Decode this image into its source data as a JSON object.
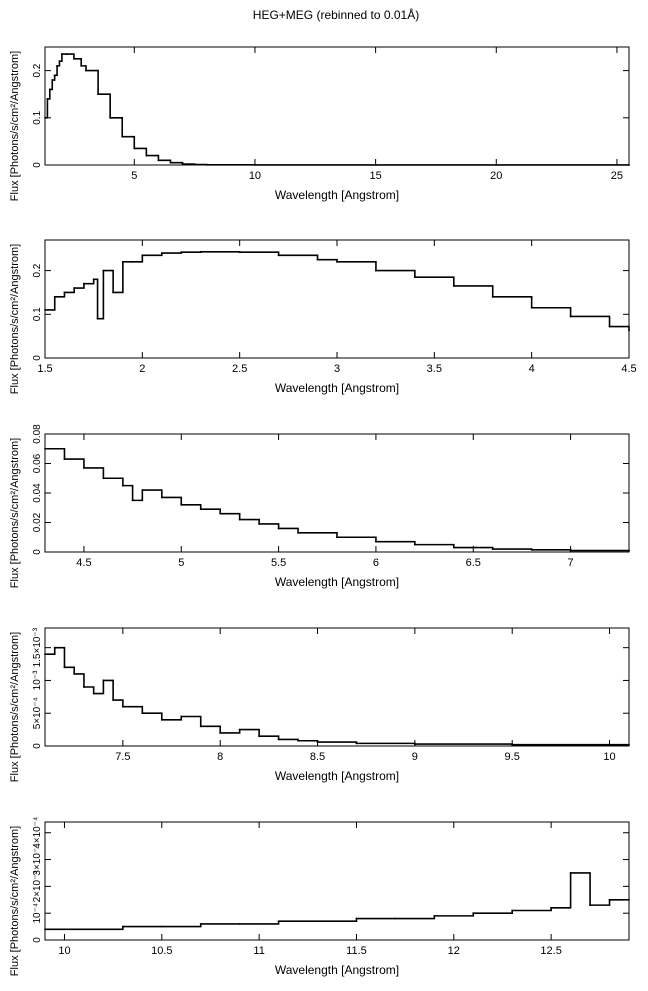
{
  "title": "HEG+MEG (rebinned to 0.01Å)",
  "chart_data": [
    {
      "type": "line",
      "xlabel": "Wavelength [Angstrom]",
      "ylabel": "Flux [Photons/s/cm²/Angstrom]",
      "xlim": [
        1.3,
        25.5
      ],
      "ylim": [
        0,
        0.25
      ],
      "xticks": [
        5,
        10,
        15,
        20,
        25
      ],
      "xtick_labels": [
        "5",
        "10",
        "15",
        "20",
        "25"
      ],
      "yticks": [
        0,
        0.1,
        0.2
      ],
      "ytick_labels": [
        "0",
        "0.1",
        "0.2"
      ],
      "series": [
        {
          "values_x": [
            1.3,
            1.4,
            1.5,
            1.6,
            1.7,
            1.8,
            1.9,
            2.0,
            2.2,
            2.5,
            2.8,
            3.0,
            3.5,
            4.0,
            4.5,
            5.0,
            5.5,
            6.0,
            6.5,
            7.0,
            7.5,
            8.0,
            10.0,
            15.0,
            20.0,
            25.5
          ],
          "values_y": [
            0.1,
            0.14,
            0.16,
            0.18,
            0.19,
            0.21,
            0.22,
            0.235,
            0.235,
            0.225,
            0.21,
            0.2,
            0.15,
            0.1,
            0.06,
            0.035,
            0.02,
            0.01,
            0.005,
            0.002,
            0.001,
            0.0005,
            0.0002,
            0.0001,
            0.0001,
            0.0001
          ]
        }
      ]
    },
    {
      "type": "line",
      "xlabel": "Wavelength [Angstrom]",
      "ylabel": "Flux [Photons/s/cm²/Angstrom]",
      "xlim": [
        1.5,
        4.5
      ],
      "ylim": [
        0,
        0.27
      ],
      "xticks": [
        1.5,
        2,
        2.5,
        3,
        3.5,
        4,
        4.5
      ],
      "xtick_labels": [
        "1.5",
        "2",
        "2.5",
        "3",
        "3.5",
        "4",
        "4.5"
      ],
      "yticks": [
        0,
        0.1,
        0.2
      ],
      "ytick_labels": [
        "0",
        "0.1",
        "0.2"
      ],
      "series": [
        {
          "values_x": [
            1.5,
            1.55,
            1.6,
            1.65,
            1.7,
            1.75,
            1.77,
            1.8,
            1.85,
            1.9,
            1.95,
            2.0,
            2.1,
            2.2,
            2.3,
            2.5,
            2.7,
            2.9,
            3.0,
            3.2,
            3.4,
            3.6,
            3.8,
            4.0,
            4.2,
            4.4,
            4.5
          ],
          "values_y": [
            0.11,
            0.14,
            0.15,
            0.16,
            0.17,
            0.18,
            0.09,
            0.2,
            0.15,
            0.22,
            0.22,
            0.235,
            0.24,
            0.242,
            0.243,
            0.242,
            0.235,
            0.225,
            0.22,
            0.2,
            0.185,
            0.165,
            0.14,
            0.115,
            0.095,
            0.072,
            0.063
          ]
        }
      ]
    },
    {
      "type": "line",
      "xlabel": "Wavelength [Angstrom]",
      "ylabel": "Flux [Photons/s/cm²/Angstrom]",
      "xlim": [
        4.3,
        7.3
      ],
      "ylim": [
        0,
        0.08
      ],
      "xticks": [
        4.5,
        5,
        5.5,
        6,
        6.5,
        7
      ],
      "xtick_labels": [
        "4.5",
        "5",
        "5.5",
        "6",
        "6.5",
        "7"
      ],
      "yticks": [
        0,
        0.02,
        0.04,
        0.06,
        0.08
      ],
      "ytick_labels": [
        "0",
        "0.02",
        "0.04",
        "0.06",
        "0.08"
      ],
      "series": [
        {
          "values_x": [
            4.3,
            4.4,
            4.5,
            4.6,
            4.7,
            4.75,
            4.8,
            4.9,
            5.0,
            5.1,
            5.2,
            5.3,
            5.4,
            5.5,
            5.6,
            5.8,
            6.0,
            6.2,
            6.4,
            6.6,
            6.8,
            7.0,
            7.3
          ],
          "values_y": [
            0.07,
            0.063,
            0.057,
            0.05,
            0.045,
            0.035,
            0.042,
            0.037,
            0.032,
            0.029,
            0.026,
            0.022,
            0.019,
            0.016,
            0.013,
            0.01,
            0.007,
            0.005,
            0.003,
            0.002,
            0.0015,
            0.001,
            0.0008
          ]
        }
      ]
    },
    {
      "type": "line",
      "xlabel": "Wavelength [Angstrom]",
      "ylabel": "Flux [Photons/s/cm²/Angstrom]",
      "xlim": [
        7.1,
        10.1
      ],
      "ylim": [
        0,
        0.0018
      ],
      "xticks": [
        7.5,
        8,
        8.5,
        9,
        9.5,
        10
      ],
      "xtick_labels": [
        "7.5",
        "8",
        "8.5",
        "9",
        "9.5",
        "10"
      ],
      "yticks": [
        0,
        0.0005,
        0.001,
        0.0015
      ],
      "ytick_labels": [
        "0",
        "5×10⁻⁴",
        "10⁻³",
        "1.5×10⁻³"
      ],
      "series": [
        {
          "values_x": [
            7.1,
            7.15,
            7.2,
            7.25,
            7.3,
            7.35,
            7.4,
            7.45,
            7.5,
            7.6,
            7.7,
            7.8,
            7.9,
            8.0,
            8.1,
            8.2,
            8.3,
            8.4,
            8.5,
            8.7,
            9.0,
            9.5,
            10.1
          ],
          "values_y": [
            0.0014,
            0.0015,
            0.0012,
            0.0011,
            0.0009,
            0.0008,
            0.001,
            0.0007,
            0.0006,
            0.0005,
            0.0004,
            0.00045,
            0.0003,
            0.0002,
            0.00025,
            0.00015,
            0.0001,
            8e-05,
            6e-05,
            4e-05,
            3e-05,
            2e-05,
            2e-05
          ]
        }
      ]
    },
    {
      "type": "line",
      "xlabel": "Wavelength [Angstrom]",
      "ylabel": "Flux [Photons/s/cm²/Angstrom]",
      "xlim": [
        9.9,
        12.9
      ],
      "ylim": [
        0,
        0.00044
      ],
      "xticks": [
        10,
        10.5,
        11,
        11.5,
        12,
        12.5
      ],
      "xtick_labels": [
        "10",
        "10.5",
        "11",
        "11.5",
        "12",
        "12.5"
      ],
      "yticks": [
        0,
        0.0001,
        0.0002,
        0.0003,
        0.0004
      ],
      "ytick_labels": [
        "0",
        "10⁻⁴",
        "2×10⁻⁴",
        "3×10⁻⁴",
        "4×10⁻⁴"
      ],
      "series": [
        {
          "values_x": [
            9.9,
            10.0,
            10.1,
            10.3,
            10.5,
            10.7,
            10.9,
            11.1,
            11.3,
            11.5,
            11.7,
            11.9,
            12.1,
            12.3,
            12.5,
            12.6,
            12.7,
            12.8,
            12.9
          ],
          "values_y": [
            4e-05,
            4e-05,
            4e-05,
            5e-05,
            5e-05,
            6e-05,
            6e-05,
            7e-05,
            7e-05,
            8e-05,
            8e-05,
            9e-05,
            0.0001,
            0.00011,
            0.00012,
            0.00025,
            0.00013,
            0.00015,
            0.00015
          ]
        }
      ]
    }
  ]
}
